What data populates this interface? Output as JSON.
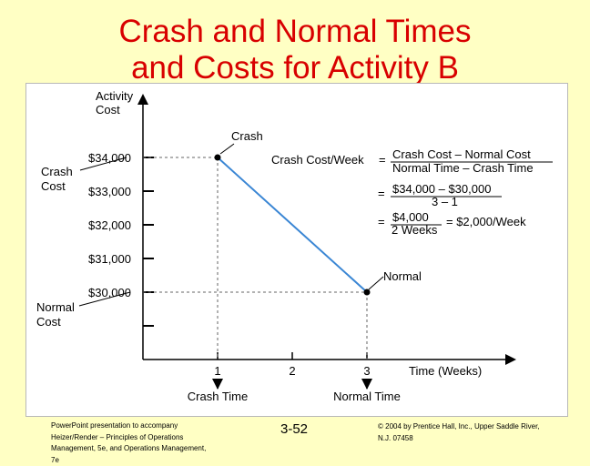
{
  "slide": {
    "title_line1": "Crash and Normal Times",
    "title_line2": "and Costs for Activity B",
    "page_number": "3-52",
    "footer_left": [
      "PowerPoint presentation to accompany",
      "Heizer/Render – Principles of Operations",
      "Management, 5e, and Operations Management,",
      "7e"
    ],
    "footer_right": [
      "© 2004 by Prentice Hall, Inc., Upper Saddle River,",
      "N.J. 07458"
    ]
  },
  "chart_data": {
    "type": "line",
    "y_axis_label": [
      "Activity",
      "Cost"
    ],
    "x_axis_label": "Time (Weeks)",
    "y_ticks": [
      {
        "value": 34000,
        "label": "$34,000"
      },
      {
        "value": 33000,
        "label": "$33,000"
      },
      {
        "value": 32000,
        "label": "$32,000"
      },
      {
        "value": 31000,
        "label": "$31,000"
      },
      {
        "value": 30000,
        "label": "$30,000"
      },
      {
        "value": 29000,
        "label": ""
      }
    ],
    "x_ticks": [
      {
        "value": 1,
        "label": "1"
      },
      {
        "value": 2,
        "label": "2"
      },
      {
        "value": 3,
        "label": "3"
      }
    ],
    "series": [
      {
        "points": [
          {
            "x": 1,
            "y": 34000,
            "label": "Crash"
          },
          {
            "x": 3,
            "y": 30000,
            "label": "Normal"
          }
        ],
        "color": "#3a86d4"
      }
    ],
    "y_markers": [
      {
        "value": 34000,
        "label": [
          "Crash",
          "Cost"
        ]
      },
      {
        "value": 30000,
        "label": [
          "Normal",
          "Cost"
        ]
      }
    ],
    "x_markers": [
      {
        "value": 1,
        "label": "Crash Time"
      },
      {
        "value": 3,
        "label": "Normal Time"
      }
    ],
    "formula": {
      "lhs": "Crash Cost/Week",
      "eq": "=",
      "f1_num": "Crash Cost – Normal Cost",
      "f1_den": "Normal Time – Crash Time",
      "f2_num": "$34,000 – $30,000",
      "f2_den": "3 – 1",
      "f3_num": "$4,000",
      "f3_den": "2 Weeks",
      "result": "= $2,000/Week"
    }
  }
}
